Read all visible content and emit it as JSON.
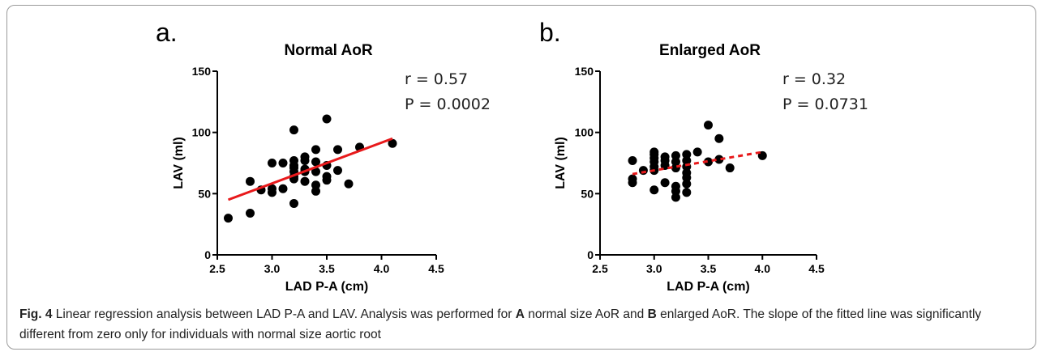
{
  "chart_data": [
    {
      "panel_label": "a.",
      "type": "scatter",
      "title": "Normal AoR",
      "xlabel": "LAD P-A (cm)",
      "ylabel": "LAV (ml)",
      "xlim": [
        2.5,
        4.5
      ],
      "ylim": [
        0,
        150
      ],
      "xticks": [
        "2.5",
        "3.0",
        "3.5",
        "4.0",
        "4.5"
      ],
      "yticks": [
        "0",
        "50",
        "100",
        "150"
      ],
      "annotation": [
        "r = 0.57",
        "P = 0.0002"
      ],
      "points": [
        [
          2.6,
          30
        ],
        [
          2.8,
          34
        ],
        [
          2.8,
          60
        ],
        [
          2.9,
          53
        ],
        [
          3.0,
          51
        ],
        [
          3.0,
          54
        ],
        [
          3.0,
          75
        ],
        [
          3.1,
          54
        ],
        [
          3.1,
          75
        ],
        [
          3.2,
          42
        ],
        [
          3.2,
          62
        ],
        [
          3.2,
          64
        ],
        [
          3.2,
          68
        ],
        [
          3.2,
          71
        ],
        [
          3.2,
          73
        ],
        [
          3.2,
          77
        ],
        [
          3.2,
          102
        ],
        [
          3.3,
          60
        ],
        [
          3.3,
          68
        ],
        [
          3.3,
          70
        ],
        [
          3.3,
          77
        ],
        [
          3.3,
          80
        ],
        [
          3.4,
          52
        ],
        [
          3.4,
          57
        ],
        [
          3.4,
          68
        ],
        [
          3.4,
          76
        ],
        [
          3.4,
          86
        ],
        [
          3.5,
          61
        ],
        [
          3.5,
          64
        ],
        [
          3.5,
          73
        ],
        [
          3.5,
          111
        ],
        [
          3.6,
          69
        ],
        [
          3.6,
          86
        ],
        [
          3.7,
          58
        ],
        [
          3.8,
          88
        ],
        [
          4.1,
          91
        ]
      ],
      "regression": {
        "x": [
          2.6,
          4.1
        ],
        "y": [
          45,
          95
        ],
        "style": "solid",
        "color": "#e8191b"
      }
    },
    {
      "panel_label": "b.",
      "type": "scatter",
      "title": "Enlarged AoR",
      "xlabel": "LAD P-A (cm)",
      "ylabel": "LAV (ml)",
      "xlim": [
        2.5,
        4.5
      ],
      "ylim": [
        0,
        150
      ],
      "xticks": [
        "2.5",
        "3.0",
        "3.5",
        "4.0",
        "4.5"
      ],
      "yticks": [
        "0",
        "50",
        "100",
        "150"
      ],
      "annotation": [
        "r = 0.32",
        "P = 0.0731"
      ],
      "points": [
        [
          2.8,
          59
        ],
        [
          2.8,
          62
        ],
        [
          2.8,
          77
        ],
        [
          2.9,
          69
        ],
        [
          3.0,
          53
        ],
        [
          3.0,
          69
        ],
        [
          3.0,
          72
        ],
        [
          3.0,
          76
        ],
        [
          3.0,
          79
        ],
        [
          3.0,
          82
        ],
        [
          3.0,
          84
        ],
        [
          3.1,
          59
        ],
        [
          3.1,
          73
        ],
        [
          3.1,
          77
        ],
        [
          3.1,
          80
        ],
        [
          3.2,
          47
        ],
        [
          3.2,
          52
        ],
        [
          3.2,
          56
        ],
        [
          3.2,
          71
        ],
        [
          3.2,
          76
        ],
        [
          3.2,
          81
        ],
        [
          3.3,
          51
        ],
        [
          3.3,
          58
        ],
        [
          3.3,
          63
        ],
        [
          3.3,
          67
        ],
        [
          3.3,
          72
        ],
        [
          3.3,
          77
        ],
        [
          3.3,
          82
        ],
        [
          3.4,
          84
        ],
        [
          3.5,
          76
        ],
        [
          3.5,
          106
        ],
        [
          3.6,
          78
        ],
        [
          3.6,
          95
        ],
        [
          3.7,
          71
        ],
        [
          4.0,
          81
        ]
      ],
      "regression": {
        "x": [
          2.8,
          4.0
        ],
        "y": [
          66,
          84
        ],
        "style": "dashed",
        "color": "#e8191b"
      }
    }
  ],
  "caption": {
    "fig_label": "Fig. 4",
    "text_1": " Linear regression analysis between LAD P-A and LAV. Analysis was performed for ",
    "label_a": "A",
    "text_2": " normal size AoR and ",
    "label_b": "B",
    "text_3": " enlarged AoR. The slope of the fitted line was significantly different from zero only for individuals with normal size aortic root"
  }
}
